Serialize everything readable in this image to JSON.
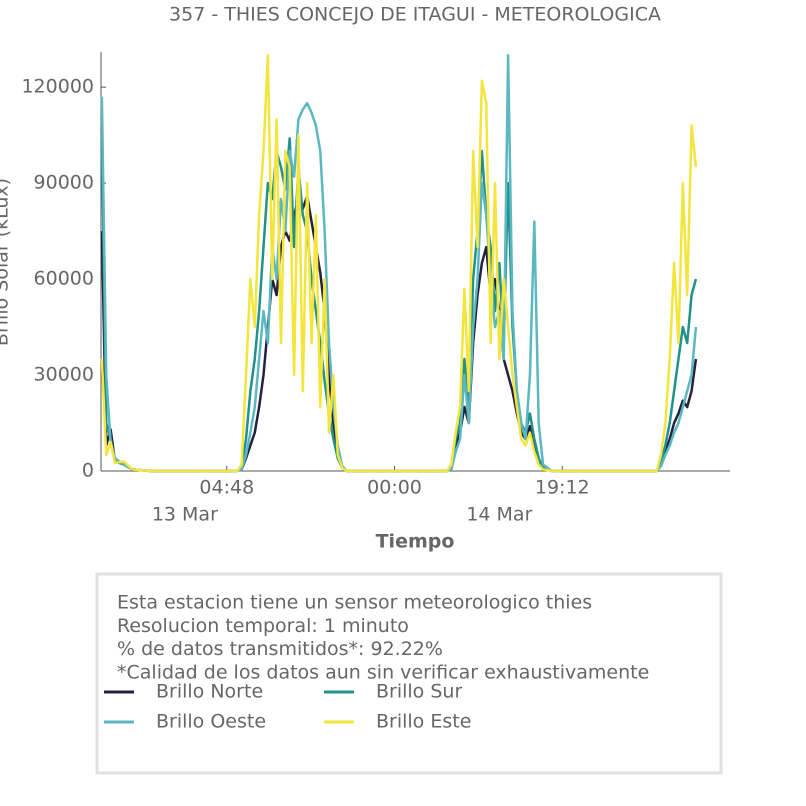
{
  "chart_data": {
    "type": "line",
    "title": "357 - THIES CONCEJO DE ITAGUI - METEOROLOGICA",
    "xlabel": "Tiempo",
    "ylabel": "Brillo Solar (kLux)",
    "x": [
      "12 Mar 14:30",
      "12 Mar 15:00",
      "12 Mar 15:30",
      "12 Mar 16:00",
      "12 Mar 17:00",
      "12 Mar 18:00",
      "12 Mar 20:00",
      "12 Mar 23:00",
      "13 Mar 03:00",
      "13 Mar 06:00",
      "13 Mar 06:30",
      "13 Mar 07:00",
      "13 Mar 07:30",
      "13 Mar 08:00",
      "13 Mar 08:30",
      "13 Mar 09:00",
      "13 Mar 09:30",
      "13 Mar 10:00",
      "13 Mar 10:30",
      "13 Mar 11:00",
      "13 Mar 11:30",
      "13 Mar 12:00",
      "13 Mar 12:30",
      "13 Mar 13:00",
      "13 Mar 13:30",
      "13 Mar 14:00",
      "13 Mar 14:30",
      "13 Mar 15:00",
      "13 Mar 15:30",
      "13 Mar 16:00",
      "13 Mar 16:30",
      "13 Mar 17:00",
      "13 Mar 17:30",
      "13 Mar 18:00",
      "13 Mar 18:30",
      "13 Mar 21:00",
      "14 Mar 00:00",
      "14 Mar 04:00",
      "14 Mar 06:00",
      "14 Mar 06:30",
      "14 Mar 07:00",
      "14 Mar 07:30",
      "14 Mar 08:00",
      "14 Mar 08:30",
      "14 Mar 09:00",
      "14 Mar 09:30",
      "14 Mar 10:00",
      "14 Mar 10:30",
      "14 Mar 11:00",
      "14 Mar 11:30",
      "14 Mar 12:00",
      "14 Mar 12:30",
      "14 Mar 13:00",
      "14 Mar 13:30",
      "14 Mar 14:00",
      "14 Mar 14:30",
      "14 Mar 15:00",
      "14 Mar 15:30",
      "14 Mar 16:00",
      "14 Mar 16:30",
      "14 Mar 17:00",
      "14 Mar 18:00",
      "14 Mar 21:00",
      "15 Mar 00:00",
      "15 Mar 04:00",
      "15 Mar 06:00",
      "15 Mar 06:30",
      "15 Mar 07:00",
      "15 Mar 07:30",
      "15 Mar 08:00",
      "15 Mar 08:30",
      "15 Mar 09:00",
      "15 Mar 09:30",
      "15 Mar 10:00",
      "15 Mar 10:30"
    ],
    "series": [
      {
        "name": "Brillo Norte",
        "color": "#23213f",
        "values": [
          75000,
          8000,
          13000,
          3000,
          2500,
          500,
          0,
          0,
          0,
          0,
          500,
          4000,
          8000,
          12000,
          20000,
          30000,
          45000,
          60000,
          55000,
          70000,
          75000,
          72000,
          80000,
          85000,
          82000,
          86000,
          78000,
          70000,
          62000,
          50000,
          30000,
          15000,
          6000,
          1500,
          0,
          0,
          0,
          0,
          0,
          1000,
          8000,
          12000,
          20000,
          15000,
          40000,
          55000,
          65000,
          70000,
          55000,
          60000,
          50000,
          35000,
          30000,
          25000,
          18000,
          12000,
          10000,
          14000,
          8000,
          3000,
          1000,
          0,
          0,
          0,
          0,
          0,
          2000,
          6000,
          10000,
          15000,
          18000,
          22000,
          20000,
          25000,
          35000
        ]
      },
      {
        "name": "Brillo Sur",
        "color": "#21918c",
        "values": [
          105000,
          15000,
          10000,
          3000,
          2000,
          500,
          0,
          0,
          0,
          0,
          1000,
          10000,
          25000,
          35000,
          50000,
          70000,
          90000,
          85000,
          100000,
          95000,
          88000,
          104000,
          70000,
          95000,
          80000,
          75000,
          60000,
          50000,
          40000,
          28000,
          18000,
          10000,
          4000,
          1000,
          0,
          0,
          0,
          0,
          0,
          1000,
          10000,
          15000,
          35000,
          20000,
          60000,
          75000,
          100000,
          80000,
          70000,
          50000,
          65000,
          40000,
          90000,
          45000,
          25000,
          15000,
          12000,
          18000,
          10000,
          4000,
          1000,
          0,
          0,
          0,
          0,
          0,
          3000,
          8000,
          15000,
          25000,
          35000,
          45000,
          40000,
          55000,
          60000
        ]
      },
      {
        "name": "Brillo Oeste",
        "color": "#5bb8c0",
        "values": [
          117000,
          30000,
          9000,
          4000,
          2000,
          500,
          0,
          0,
          0,
          0,
          500,
          5000,
          12000,
          20000,
          35000,
          50000,
          40000,
          70000,
          60000,
          85000,
          75000,
          100000,
          92000,
          110000,
          113000,
          115000,
          112000,
          108000,
          100000,
          75000,
          40000,
          20000,
          8000,
          1500,
          0,
          0,
          0,
          0,
          0,
          500,
          6000,
          10000,
          30000,
          15000,
          45000,
          60000,
          90000,
          80000,
          60000,
          45000,
          50000,
          35000,
          130000,
          50000,
          25000,
          15000,
          10000,
          30000,
          78000,
          15000,
          2000,
          0,
          0,
          0,
          0,
          0,
          1500,
          5000,
          8000,
          12000,
          15000,
          20000,
          25000,
          30000,
          45000
        ]
      },
      {
        "name": "Brillo Este",
        "color": "#f3e53c",
        "values": [
          35000,
          5000,
          9000,
          2500,
          3000,
          500,
          0,
          0,
          0,
          0,
          2000,
          30000,
          60000,
          45000,
          80000,
          100000,
          130000,
          60000,
          110000,
          40000,
          100000,
          95000,
          30000,
          105000,
          25000,
          90000,
          40000,
          80000,
          20000,
          60000,
          12000,
          30000,
          5000,
          1000,
          0,
          0,
          0,
          0,
          0,
          2000,
          12000,
          20000,
          57000,
          25000,
          100000,
          70000,
          122000,
          115000,
          40000,
          90000,
          35000,
          60000,
          45000,
          30000,
          20000,
          10000,
          8000,
          12000,
          6000,
          2000,
          500,
          0,
          0,
          0,
          0,
          0,
          5000,
          15000,
          35000,
          65000,
          40000,
          90000,
          55000,
          108000,
          95000
        ]
      }
    ],
    "xlim": [
      "12 Mar 14:24",
      "15 Mar 14:24"
    ],
    "xticks": [
      {
        "value": "13 Mar 04:48",
        "label": "04:48"
      },
      {
        "value": "14 Mar 00:00",
        "label": "00:00"
      },
      {
        "value": "14 Mar 19:12",
        "label": "19:12"
      }
    ],
    "xticks_secondary": [
      {
        "value": "13 Mar 00:00",
        "label": "13 Mar"
      },
      {
        "value": "14 Mar 12:00",
        "label": "14 Mar"
      }
    ],
    "ylim": [
      0,
      131000
    ],
    "yticks": [
      0,
      30000,
      60000,
      90000,
      120000
    ],
    "grid": false,
    "notes": [
      "Esta estacion tiene un sensor meteorologico thies",
      "Resolucion temporal: 1 minuto",
      "% de datos transmitidos*: 92.22%",
      "*Calidad de los datos aun sin verificar exhaustivamente"
    ]
  }
}
